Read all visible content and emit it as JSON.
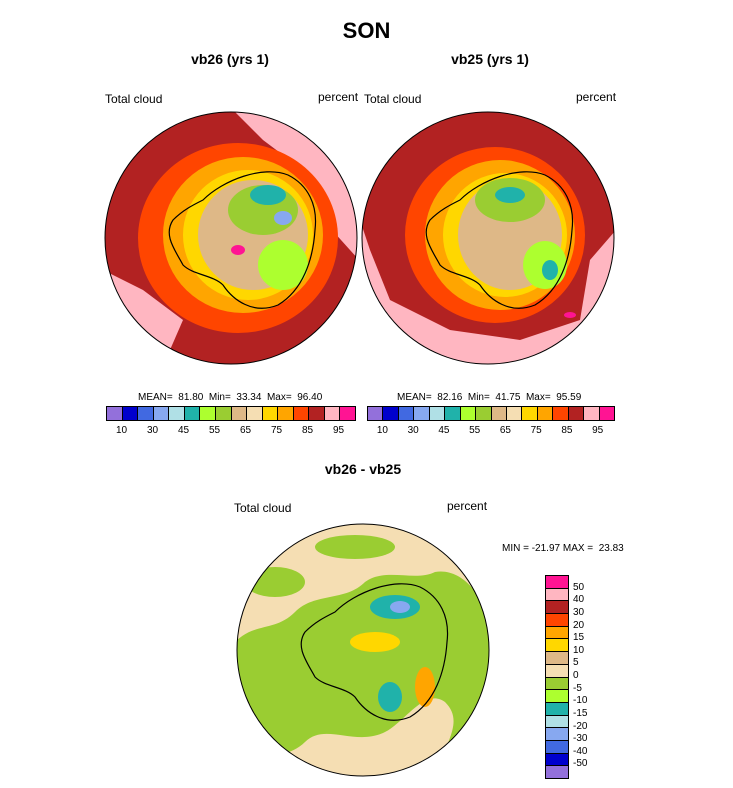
{
  "title": "SON",
  "panels": [
    {
      "subtitle": "vb26 (yrs 1)",
      "left_label": "Total cloud",
      "right_label": "percent",
      "stats": "MEAN=  81.80  Min=  33.34  Max=  96.40"
    },
    {
      "subtitle": "vb25 (yrs 1)",
      "left_label": "Total cloud",
      "right_label": "percent",
      "stats": "MEAN=  82.16  Min=  41.75  Max=  95.59"
    }
  ],
  "abs_colorbar": {
    "colors": [
      "#9370db",
      "#0000cd",
      "#4169e1",
      "#87a8f0",
      "#b0e0e6",
      "#20b2aa",
      "#adff2f",
      "#9acd32",
      "#deb887",
      "#f5deb3",
      "#ffd700",
      "#ffa500",
      "#ff4500",
      "#b22222",
      "#ffb6c1",
      "#ff1493"
    ],
    "ticks": [
      "10",
      "30",
      "45",
      "55",
      "65",
      "75",
      "85",
      "95"
    ]
  },
  "diff_panel": {
    "subtitle": "vb26 - vb25",
    "left_label": "Total cloud",
    "right_label": "percent",
    "minmax": "MIN = -21.97 MAX =  23.83"
  },
  "diff_colorbar": {
    "colors_top_to_bottom": [
      "#ff1493",
      "#ffb6c1",
      "#b22222",
      "#ff4500",
      "#ffa500",
      "#ffd700",
      "#deb887",
      "#f5deb3",
      "#9acd32",
      "#adff2f",
      "#20b2aa",
      "#b0e0e6",
      "#87a8f0",
      "#4169e1",
      "#0000cd",
      "#9370db"
    ],
    "ticks": [
      "50",
      "40",
      "30",
      "20",
      "15",
      "10",
      "5",
      "0",
      "-5",
      "-10",
      "-15",
      "-20",
      "-30",
      "-40",
      "-50"
    ]
  },
  "map_colors": {
    "ocean_far": "#ffb6c1",
    "ocean_mid": "#b22222",
    "ring": "#ff4500",
    "inner_orange": "#ffa500",
    "inner_yellow": "#ffd700",
    "tan": "#deb887",
    "green": "#9acd32",
    "lightgreen": "#adff2f",
    "teal": "#20b2aa",
    "blue": "#87a8f0",
    "diff_bg": "#f5deb3",
    "diff_green": "#9acd32"
  }
}
